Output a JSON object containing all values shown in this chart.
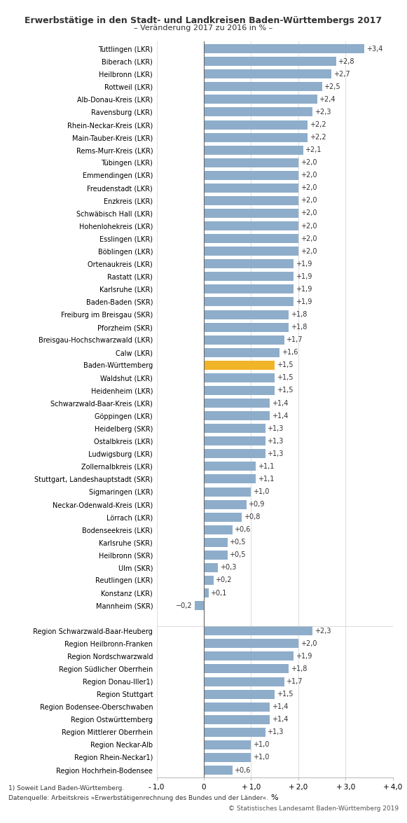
{
  "title": "Erwerbstätige in den Stadt- und Landkreisen Baden-Württembergs 2017",
  "subtitle": "– Veränderung 2017 zu 2016 in % –",
  "xlabel": "%",
  "footnote1": "1) Soweit Land Baden-Württemberg.",
  "footnote2": "Datenquelle: Arbeitskreis »Erwerbstätigenrechnung des Bundes und der Länder«.",
  "footnote3": "© Statistisches Landesamt Baden-Württemberg 2019",
  "categories": [
    "Tuttlingen (LKR)",
    "Biberach (LKR)",
    "Heilbronn (LKR)",
    "Rottweil (LKR)",
    "Alb-Donau-Kreis (LKR)",
    "Ravensburg (LKR)",
    "Rhein-Neckar-Kreis (LKR)",
    "Main-Tauber-Kreis (LKR)",
    "Rems-Murr-Kreis (LKR)",
    "Tübingen (LKR)",
    "Emmendingen (LKR)",
    "Freudenstadt (LKR)",
    "Enzkreis (LKR)",
    "Schwäbisch Hall (LKR)",
    "Hohenlohekreis (LKR)",
    "Esslingen (LKR)",
    "Böblingen (LKR)",
    "Ortenaukreis (LKR)",
    "Rastatt (LKR)",
    "Karlsruhe (LKR)",
    "Baden-Baden (SKR)",
    "Freiburg im Breisgau (SKR)",
    "Pforzheim (SKR)",
    "Breisgau-Hochschwarzwald (LKR)",
    "Calw (LKR)",
    "Baden-Württemberg",
    "Waldshut (LKR)",
    "Heidenheim (LKR)",
    "Schwarzwald-Baar-Kreis (LKR)",
    "Göppingen (LKR)",
    "Heidelberg (SKR)",
    "Ostalbkreis (LKR)",
    "Ludwigsburg (LKR)",
    "Zollernalbkreis (LKR)",
    "Stuttgart, Landeshauptstadt (SKR)",
    "Sigmaringen (LKR)",
    "Neckar-Odenwald-Kreis (LKR)",
    "Lörrach (LKR)",
    "Bodenseekreis (LKR)",
    "Karlsruhe (SKR)",
    "Heilbronn (SKR)",
    "Ulm (SKR)",
    "Reutlingen (LKR)",
    "Konstanz (LKR)",
    "Mannheim (SKR)",
    "",
    "Region Schwarzwald-Baar-Heuberg",
    "Region Heilbronn-Franken",
    "Region Nordschwarzwald",
    "Region Südlicher Oberrhein",
    "Region Donau-Iller1)",
    "Region Stuttgart",
    "Region Bodensee-Oberschwaben",
    "Region Ostwürttemberg",
    "Region Mittlerer Oberrhein",
    "Region Neckar-Alb",
    "Region Rhein-Neckar1)",
    "Region Hochrhein-Bodensee"
  ],
  "values": [
    3.4,
    2.8,
    2.7,
    2.5,
    2.4,
    2.3,
    2.2,
    2.2,
    2.1,
    2.0,
    2.0,
    2.0,
    2.0,
    2.0,
    2.0,
    2.0,
    2.0,
    1.9,
    1.9,
    1.9,
    1.9,
    1.8,
    1.8,
    1.7,
    1.6,
    1.5,
    1.5,
    1.5,
    1.4,
    1.4,
    1.3,
    1.3,
    1.3,
    1.1,
    1.1,
    1.0,
    0.9,
    0.8,
    0.6,
    0.5,
    0.5,
    0.3,
    0.2,
    0.1,
    -0.2,
    0,
    2.3,
    2.0,
    1.9,
    1.8,
    1.7,
    1.5,
    1.4,
    1.4,
    1.3,
    1.0,
    1.0,
    0.6
  ],
  "bar_color_default": "#8eadca",
  "bar_color_highlight": "#f0b429",
  "highlight_index": 25,
  "xlim": [
    -1.0,
    4.0
  ],
  "xticks": [
    -1.0,
    0.0,
    1.0,
    2.0,
    3.0,
    4.0
  ],
  "xtick_labels": [
    "- 1,0",
    "0",
    "+ 1,0",
    "+ 2,0",
    "+ 3,0",
    "+ 4,0"
  ],
  "bg_color": "#ffffff",
  "grid_color": "#d0d0d0",
  "text_color": "#333333"
}
